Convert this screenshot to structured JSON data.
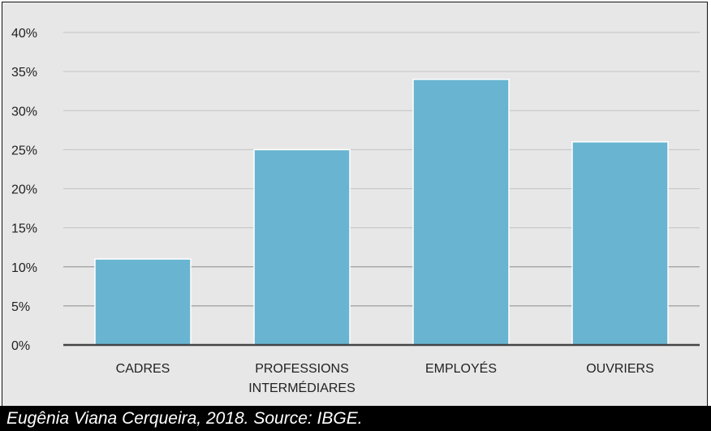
{
  "chart_data": {
    "type": "bar",
    "categories": [
      [
        "CADRES"
      ],
      [
        "PROFESSIONS",
        "INTERMÉDIARES"
      ],
      [
        "EMPLOYÉS"
      ],
      [
        "OUVRIERS"
      ]
    ],
    "values": [
      11,
      25,
      34,
      26
    ],
    "ylim": [
      0,
      40
    ],
    "yticks": [
      "0%",
      "5%",
      "10%",
      "15%",
      "20%",
      "25%",
      "30%",
      "35%",
      "40%"
    ],
    "grid": true,
    "bar_color": "#68b4d1",
    "title": "",
    "xlabel": "",
    "ylabel": ""
  },
  "caption": "Eugênia Viana Cerqueira, 2018. Source: IBGE."
}
